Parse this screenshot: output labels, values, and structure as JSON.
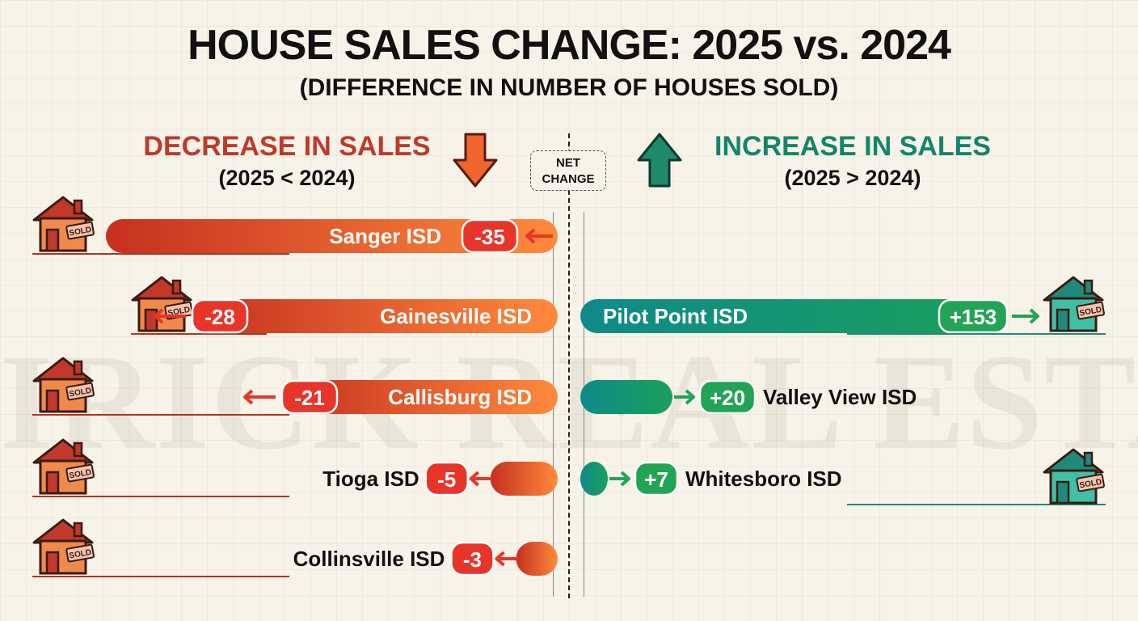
{
  "title": "HOUSE SALES CHANGE: 2025 vs. 2024",
  "subtitle": "(DIFFERENCE IN NUMBER OF HOUSES SOLD)",
  "watermark": "IRICK REAL ESTATE GROUP",
  "decrease_heading": {
    "label": "DECREASE IN SALES",
    "condition": "(2025 < 2024)"
  },
  "increase_heading": {
    "label": "INCREASE IN SALES",
    "condition": "(2025 > 2024)"
  },
  "net_change_label": {
    "line1": "NET",
    "line2": "CHANGE"
  },
  "house_sign": "SOLD",
  "colors": {
    "decrease_dark": "#c5301f",
    "decrease_light": "#ff8a3d",
    "decrease_badge": "#e8352a",
    "increase_dark": "#0f8a8a",
    "increase_light": "#1aa05a",
    "increase_badge": "#23a455",
    "house_red": "#c0392b",
    "house_teal": "#1f8a7a"
  },
  "chart_data": {
    "type": "bar",
    "orientation": "horizontal-diverging",
    "title": "HOUSE SALES CHANGE: 2025 vs. 2024",
    "subtitle": "(DIFFERENCE IN NUMBER OF HOUSES SOLD)",
    "decreases": [
      {
        "name": "Sanger ISD",
        "value": -35,
        "display": "-35"
      },
      {
        "name": "Gainesville ISD",
        "value": -28,
        "display": "-28"
      },
      {
        "name": "Callisburg ISD",
        "value": -21,
        "display": "-21"
      },
      {
        "name": "Tioga ISD",
        "value": -5,
        "display": "-5"
      },
      {
        "name": "Collinsville ISD",
        "value": -3,
        "display": "-3"
      }
    ],
    "increases": [
      {
        "name": "Pilot Point ISD",
        "value": 153,
        "display": "+153"
      },
      {
        "name": "Valley View ISD",
        "value": 20,
        "display": "+20"
      },
      {
        "name": "Whitesboro ISD",
        "value": 7,
        "display": "+7"
      }
    ]
  }
}
